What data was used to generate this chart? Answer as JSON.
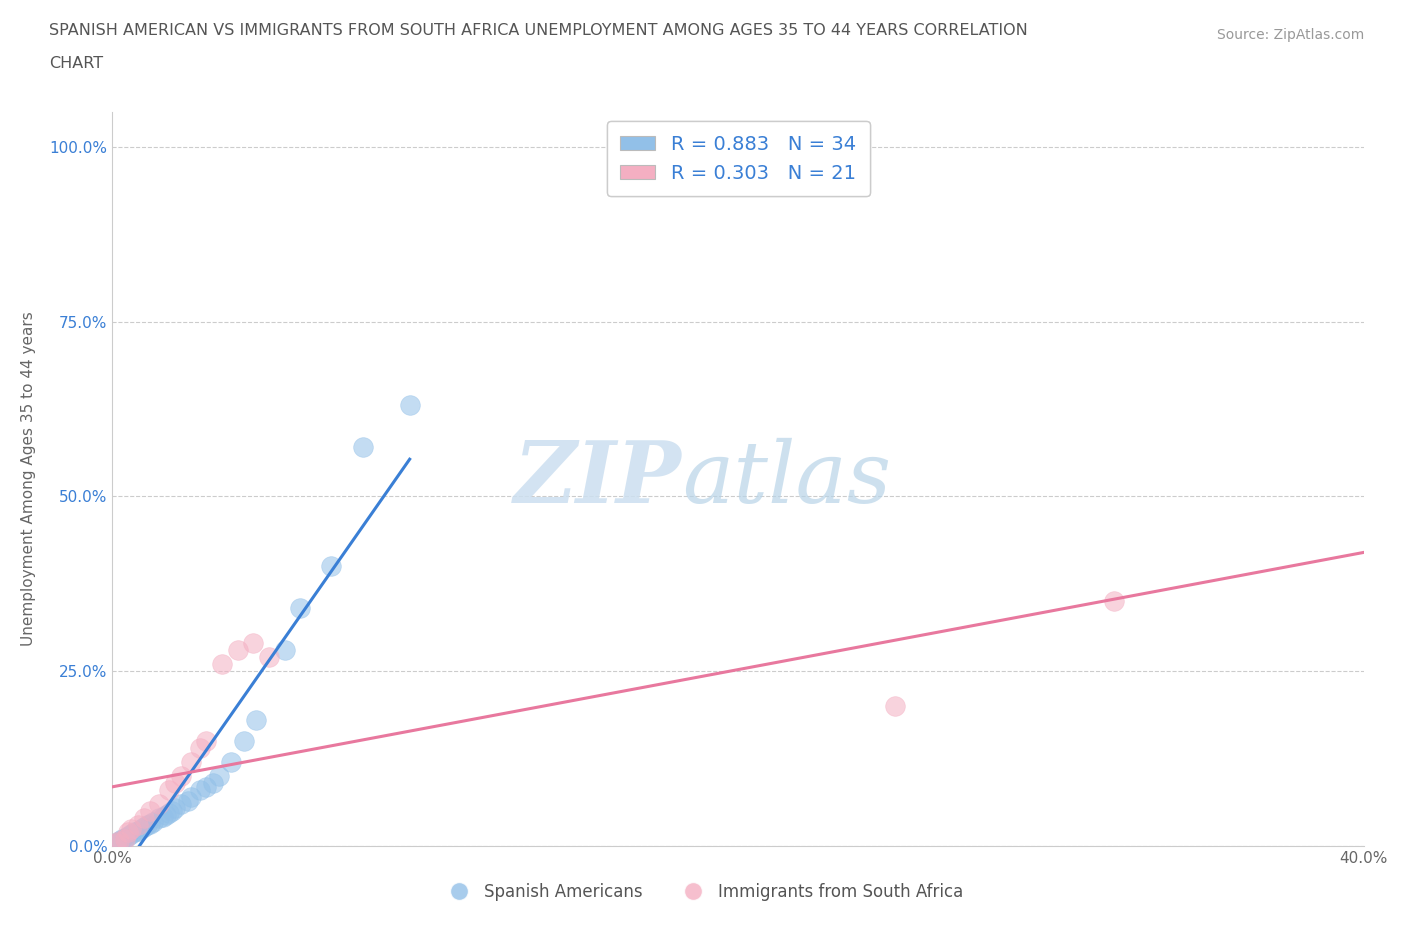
{
  "title_line1": "SPANISH AMERICAN VS IMMIGRANTS FROM SOUTH AFRICA UNEMPLOYMENT AMONG AGES 35 TO 44 YEARS CORRELATION",
  "title_line2": "CHART",
  "source": "Source: ZipAtlas.com",
  "ylabel": "Unemployment Among Ages 35 to 44 years",
  "watermark_zip": "ZIP",
  "watermark_atlas": "atlas",
  "xlim": [
    0.0,
    0.4
  ],
  "ylim": [
    0.0,
    1.05
  ],
  "spanish_color": "#92c0e8",
  "sa_color": "#f4afc2",
  "blue_line_color": "#3a7fd5",
  "pink_line_color": "#e8789e",
  "legend_r_blue": "0.883",
  "legend_n_blue": "34",
  "legend_r_pink": "0.303",
  "legend_n_pink": "21",
  "legend_label_blue": "Spanish Americans",
  "legend_label_pink": "Immigrants from South Africa",
  "spanish_x": [
    0.001,
    0.002,
    0.003,
    0.004,
    0.005,
    0.006,
    0.007,
    0.008,
    0.009,
    0.01,
    0.011,
    0.012,
    0.013,
    0.015,
    0.016,
    0.017,
    0.018,
    0.019,
    0.02,
    0.022,
    0.024,
    0.025,
    0.028,
    0.03,
    0.032,
    0.034,
    0.038,
    0.042,
    0.046,
    0.055,
    0.06,
    0.07,
    0.08,
    0.095
  ],
  "spanish_y": [
    0.005,
    0.008,
    0.01,
    0.012,
    0.015,
    0.018,
    0.02,
    0.022,
    0.025,
    0.028,
    0.03,
    0.032,
    0.035,
    0.04,
    0.042,
    0.045,
    0.048,
    0.05,
    0.055,
    0.06,
    0.065,
    0.07,
    0.08,
    0.085,
    0.09,
    0.1,
    0.12,
    0.15,
    0.18,
    0.28,
    0.34,
    0.4,
    0.57,
    0.63
  ],
  "sa_x": [
    0.001,
    0.002,
    0.004,
    0.005,
    0.006,
    0.008,
    0.01,
    0.012,
    0.015,
    0.018,
    0.02,
    0.022,
    0.025,
    0.028,
    0.03,
    0.035,
    0.04,
    0.045,
    0.05,
    0.25,
    0.32
  ],
  "sa_y": [
    0.005,
    0.008,
    0.01,
    0.02,
    0.025,
    0.03,
    0.04,
    0.05,
    0.06,
    0.08,
    0.09,
    0.1,
    0.12,
    0.14,
    0.15,
    0.26,
    0.28,
    0.29,
    0.27,
    0.2,
    0.35
  ],
  "blue_line_x": [
    0.001,
    0.095
  ],
  "pink_line_x": [
    0.0,
    0.4
  ]
}
